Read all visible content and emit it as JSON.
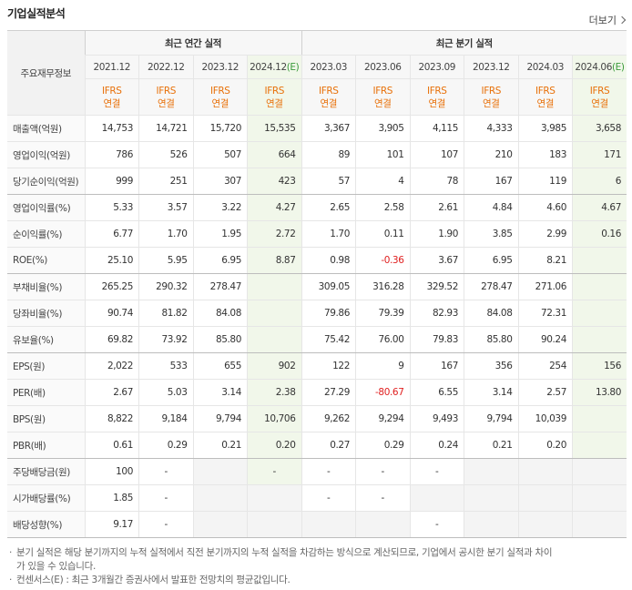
{
  "header": {
    "title": "기업실적분석",
    "more": "더보기"
  },
  "table": {
    "corner": "주요재무정보",
    "groups": [
      {
        "label": "최근 연간 실적",
        "columns": [
          {
            "period": "2021.12",
            "standard": "IFRS",
            "basis": "연결"
          },
          {
            "period": "2022.12",
            "standard": "IFRS",
            "basis": "연결"
          },
          {
            "period": "2023.12",
            "standard": "IFRS",
            "basis": "연결"
          },
          {
            "period": "2024.12",
            "estimate": "(E)",
            "standard": "IFRS",
            "basis": "연결"
          }
        ]
      },
      {
        "label": "최근 분기 실적",
        "columns": [
          {
            "period": "2023.03",
            "standard": "IFRS",
            "basis": "연결"
          },
          {
            "period": "2023.06",
            "standard": "IFRS",
            "basis": "연결"
          },
          {
            "period": "2023.09",
            "standard": "IFRS",
            "basis": "연결"
          },
          {
            "period": "2023.12",
            "standard": "IFRS",
            "basis": "연결"
          },
          {
            "period": "2024.03",
            "standard": "IFRS",
            "basis": "연결"
          },
          {
            "period": "2024.06",
            "estimate": "(E)",
            "standard": "IFRS",
            "basis": "연결"
          }
        ]
      }
    ],
    "sections": [
      [
        {
          "label": "매출액(억원)",
          "cells": [
            "14,753",
            "14,721",
            "15,720",
            "15,535",
            "3,367",
            "3,905",
            "4,115",
            "4,333",
            "3,985",
            "3,658"
          ]
        },
        {
          "label": "영업이익(억원)",
          "cells": [
            "786",
            "526",
            "507",
            "664",
            "89",
            "101",
            "107",
            "210",
            "183",
            "171"
          ]
        },
        {
          "label": "당기순이익(억원)",
          "cells": [
            "999",
            "251",
            "307",
            "423",
            "57",
            "4",
            "78",
            "167",
            "119",
            "6"
          ]
        }
      ],
      [
        {
          "label": "영업이익률(%)",
          "cells": [
            "5.33",
            "3.57",
            "3.22",
            "4.27",
            "2.65",
            "2.58",
            "2.61",
            "4.84",
            "4.60",
            "4.67"
          ]
        },
        {
          "label": "순이익률(%)",
          "cells": [
            "6.77",
            "1.70",
            "1.95",
            "2.72",
            "1.70",
            "0.11",
            "1.90",
            "3.85",
            "2.99",
            "0.16"
          ]
        },
        {
          "label": "ROE(%)",
          "cells": [
            "25.10",
            "5.95",
            "6.95",
            "8.87",
            "0.98",
            "-0.36",
            "3.67",
            "6.95",
            "8.21",
            null
          ]
        }
      ],
      [
        {
          "label": "부채비율(%)",
          "cells": [
            "265.25",
            "290.32",
            "278.47",
            null,
            "309.05",
            "316.28",
            "329.52",
            "278.47",
            "271.06",
            null
          ]
        },
        {
          "label": "당좌비율(%)",
          "cells": [
            "90.74",
            "81.82",
            "84.08",
            null,
            "79.86",
            "79.39",
            "82.93",
            "84.08",
            "72.31",
            null
          ]
        },
        {
          "label": "유보율(%)",
          "cells": [
            "69.82",
            "73.92",
            "85.80",
            null,
            "75.42",
            "76.00",
            "79.83",
            "85.80",
            "90.24",
            null
          ]
        }
      ],
      [
        {
          "label": "EPS(원)",
          "cells": [
            "2,022",
            "533",
            "655",
            "902",
            "122",
            "9",
            "167",
            "356",
            "254",
            "156"
          ]
        },
        {
          "label": "PER(배)",
          "cells": [
            "2.67",
            "5.03",
            "3.14",
            "2.38",
            "27.29",
            "-80.67",
            "6.55",
            "3.14",
            "2.57",
            "13.80"
          ]
        },
        {
          "label": "BPS(원)",
          "cells": [
            "8,822",
            "9,184",
            "9,794",
            "10,706",
            "9,262",
            "9,294",
            "9,493",
            "9,794",
            "10,039",
            null
          ]
        },
        {
          "label": "PBR(배)",
          "cells": [
            "0.61",
            "0.29",
            "0.21",
            "0.20",
            "0.27",
            "0.29",
            "0.24",
            "0.21",
            "0.20",
            null
          ]
        }
      ],
      [
        {
          "label": "주당배당금(원)",
          "cells": [
            "100",
            "-",
            null,
            "-",
            "-",
            "-",
            "-",
            null,
            null,
            null
          ]
        },
        {
          "label": "시가배당률(%)",
          "cells": [
            "1.85",
            "-",
            null,
            null,
            "-",
            "-",
            null,
            null,
            null,
            null
          ]
        },
        {
          "label": "배당성향(%)",
          "cells": [
            "9.17",
            "-",
            null,
            null,
            null,
            null,
            "-",
            null,
            null,
            null
          ]
        }
      ]
    ]
  },
  "notes": [
    "분기 실적은 해당 분기까지의 누적 실적에서 직전 분기까지의 누적 실적을 차감하는 방식으로 계산되므로, 기업에서 공시한 분기 실적과 차이가 있을 수 있습니다.",
    "컨센서스(E) : 최근 3개월간 증권사에서 발표한 전망치의 평균값입니다."
  ]
}
